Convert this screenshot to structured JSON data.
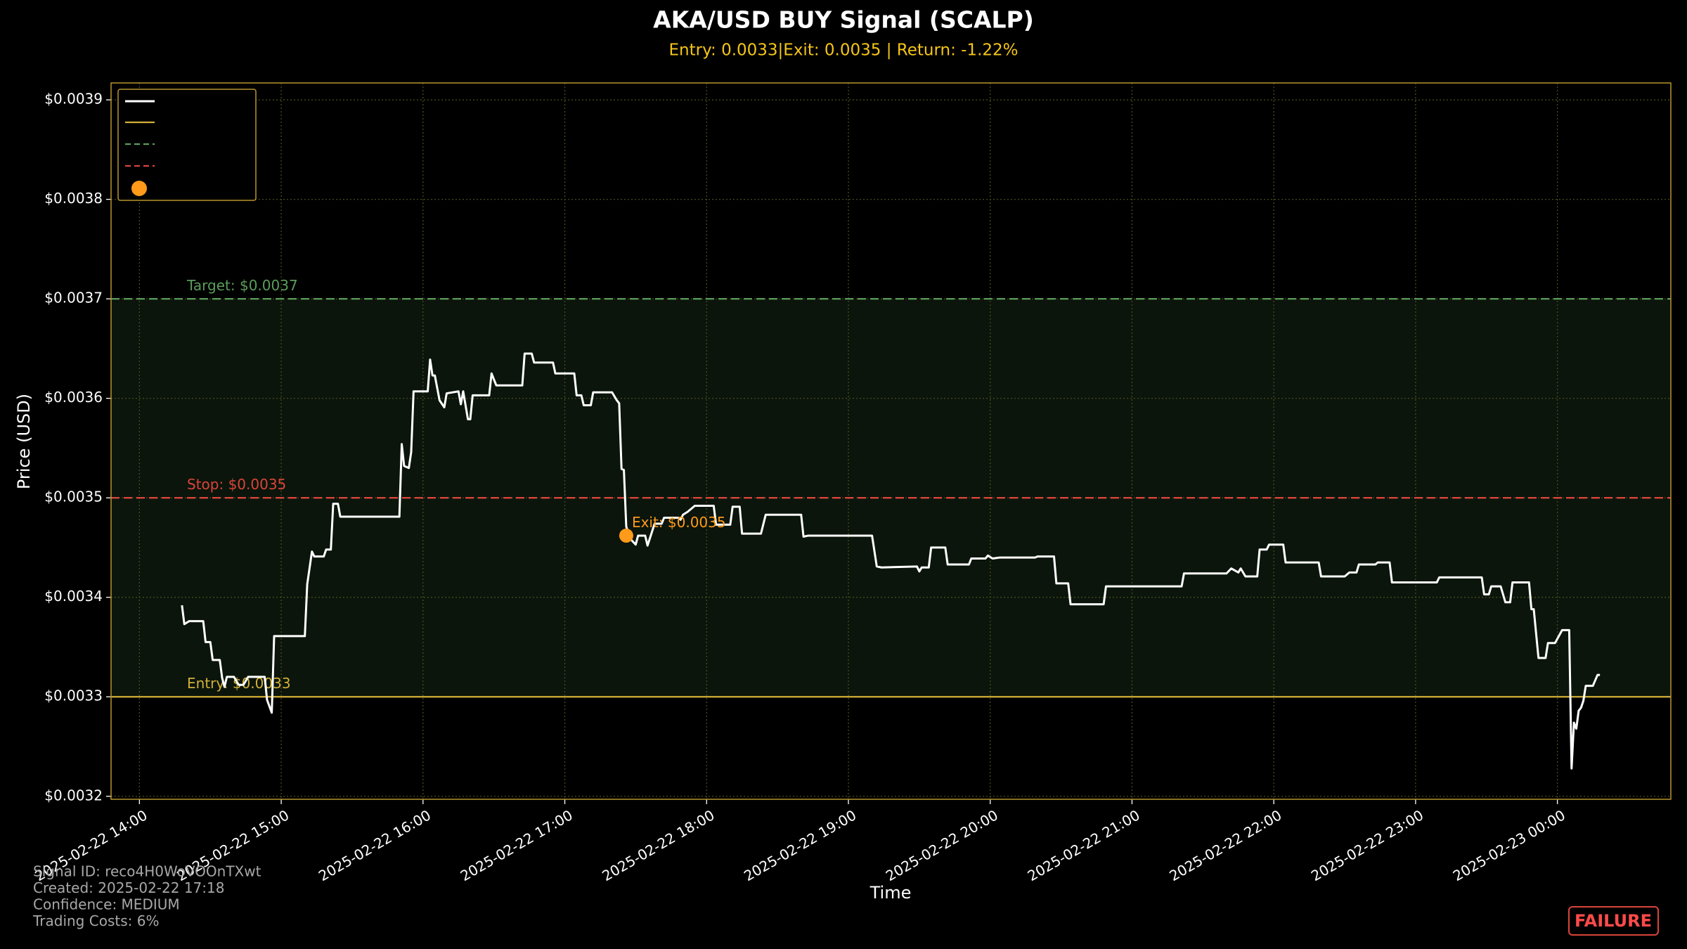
{
  "chart_data": {
    "type": "line",
    "title": "AKA/USD BUY Signal (SCALP)",
    "subtitle": "Entry: 0.0033|Exit: 0.0035 | Return: -1.22%",
    "x_label": "Time",
    "y_label": "Price (USD)",
    "line_color": "#ffffff",
    "grid": true,
    "xlim": [
      "2025-02-22 13:48",
      "2025-02-23 00:48"
    ],
    "xticks": [
      "2025-02-22 14:00",
      "2025-02-22 15:00",
      "2025-02-22 16:00",
      "2025-02-22 17:00",
      "2025-02-22 18:00",
      "2025-02-22 19:00",
      "2025-02-22 20:00",
      "2025-02-22 21:00",
      "2025-02-22 22:00",
      "2025-02-22 23:00",
      "2025-02-23 00:00"
    ],
    "ylim": [
      0.003197,
      0.003917
    ],
    "yticks": [
      {
        "value": 0.0032,
        "label": "$0.0032"
      },
      {
        "value": 0.0033,
        "label": "$0.0033"
      },
      {
        "value": 0.0034,
        "label": "$0.0034"
      },
      {
        "value": 0.0035,
        "label": "$0.0035"
      },
      {
        "value": 0.0036,
        "label": "$0.0036"
      },
      {
        "value": 0.0037,
        "label": "$0.0037"
      },
      {
        "value": 0.0038,
        "label": "$0.0038"
      },
      {
        "value": 0.0039,
        "label": "$0.0039"
      }
    ],
    "x": [
      "2025-02-22 14:18",
      "2025-02-22 14:19",
      "2025-02-22 14:21",
      "2025-02-22 14:27",
      "2025-02-22 14:28",
      "2025-02-22 14:30",
      "2025-02-22 14:31",
      "2025-02-22 14:34",
      "2025-02-22 14:35",
      "2025-02-22 14:36",
      "2025-02-22 14:37",
      "2025-02-22 14:40",
      "2025-02-22 14:42",
      "2025-02-22 14:44",
      "2025-02-22 14:46",
      "2025-02-22 14:53",
      "2025-02-22 14:54",
      "2025-02-22 14:56",
      "2025-02-22 14:57",
      "2025-02-22 15:10",
      "2025-02-22 15:11",
      "2025-02-22 15:13",
      "2025-02-22 15:14",
      "2025-02-22 15:18",
      "2025-02-22 15:19",
      "2025-02-22 15:21",
      "2025-02-22 15:22",
      "2025-02-22 15:24",
      "2025-02-22 15:25",
      "2025-02-22 15:50",
      "2025-02-22 15:51",
      "2025-02-22 15:52",
      "2025-02-22 15:54",
      "2025-02-22 15:55",
      "2025-02-22 15:56",
      "2025-02-22 16:02",
      "2025-02-22 16:03",
      "2025-02-22 16:04",
      "2025-02-22 16:05",
      "2025-02-22 16:07",
      "2025-02-22 16:09",
      "2025-02-22 16:10",
      "2025-02-22 16:15",
      "2025-02-22 16:16",
      "2025-02-22 16:17",
      "2025-02-22 16:19",
      "2025-02-22 16:20",
      "2025-02-22 16:21",
      "2025-02-22 16:28",
      "2025-02-22 16:29",
      "2025-02-22 16:31",
      "2025-02-22 16:42",
      "2025-02-22 16:43",
      "2025-02-22 16:46",
      "2025-02-22 16:47",
      "2025-02-22 16:55",
      "2025-02-22 16:56",
      "2025-02-22 17:04",
      "2025-02-22 17:05",
      "2025-02-22 17:07",
      "2025-02-22 17:08",
      "2025-02-22 17:11",
      "2025-02-22 17:12",
      "2025-02-22 17:20",
      "2025-02-22 17:22",
      "2025-02-22 17:23",
      "2025-02-22 17:24",
      "2025-02-22 17:25",
      "2025-02-22 17:26",
      "2025-02-22 17:28",
      "2025-02-22 17:30",
      "2025-02-22 17:31",
      "2025-02-22 17:34",
      "2025-02-22 17:35",
      "2025-02-22 17:38",
      "2025-02-22 17:41",
      "2025-02-22 17:42",
      "2025-02-22 17:48",
      "2025-02-22 17:49",
      "2025-02-22 17:50",
      "2025-02-22 17:52",
      "2025-02-22 17:55",
      "2025-02-22 18:03",
      "2025-02-22 18:04",
      "2025-02-22 18:10",
      "2025-02-22 18:11",
      "2025-02-22 18:14",
      "2025-02-22 18:15",
      "2025-02-22 18:23",
      "2025-02-22 18:25",
      "2025-02-22 18:40",
      "2025-02-22 18:41",
      "2025-02-22 18:43",
      "2025-02-22 19:10",
      "2025-02-22 19:12",
      "2025-02-22 19:14",
      "2025-02-22 19:29",
      "2025-02-22 19:30",
      "2025-02-22 19:31",
      "2025-02-22 19:34",
      "2025-02-22 19:35",
      "2025-02-22 19:41",
      "2025-02-22 19:42",
      "2025-02-22 19:51",
      "2025-02-22 19:52",
      "2025-02-22 19:58",
      "2025-02-22 19:59",
      "2025-02-22 20:01",
      "2025-02-22 20:04",
      "2025-02-22 20:19",
      "2025-02-22 20:20",
      "2025-02-22 20:27",
      "2025-02-22 20:28",
      "2025-02-22 20:33",
      "2025-02-22 20:34",
      "2025-02-22 20:48",
      "2025-02-22 20:49",
      "2025-02-22 21:21",
      "2025-02-22 21:22",
      "2025-02-22 21:40",
      "2025-02-22 21:42",
      "2025-02-22 21:45",
      "2025-02-22 21:46",
      "2025-02-22 21:48",
      "2025-02-22 21:53",
      "2025-02-22 21:54",
      "2025-02-22 21:57",
      "2025-02-22 21:58",
      "2025-02-22 22:04",
      "2025-02-22 22:05",
      "2025-02-22 22:19",
      "2025-02-22 22:20",
      "2025-02-22 22:30",
      "2025-02-22 22:32",
      "2025-02-22 22:35",
      "2025-02-22 22:36",
      "2025-02-22 22:43",
      "2025-02-22 22:44",
      "2025-02-22 22:49",
      "2025-02-22 22:50",
      "2025-02-22 23:09",
      "2025-02-22 23:10",
      "2025-02-22 23:28",
      "2025-02-22 23:29",
      "2025-02-22 23:31",
      "2025-02-22 23:32",
      "2025-02-22 23:36",
      "2025-02-22 23:38",
      "2025-02-22 23:40",
      "2025-02-22 23:41",
      "2025-02-22 23:48",
      "2025-02-22 23:49",
      "2025-02-22 23:50",
      "2025-02-22 23:52",
      "2025-02-22 23:55",
      "2025-02-22 23:56",
      "2025-02-22 23:59",
      "2025-02-23 00:02",
      "2025-02-23 00:05",
      "2025-02-23 00:06",
      "2025-02-23 00:07",
      "2025-02-23 00:08",
      "2025-02-23 00:09",
      "2025-02-23 00:10",
      "2025-02-23 00:11",
      "2025-02-23 00:12",
      "2025-02-23 00:15",
      "2025-02-23 00:17",
      "2025-02-23 00:18"
    ],
    "values": [
      0.003392,
      0.003373,
      0.003376,
      0.003376,
      0.003355,
      0.003355,
      0.003337,
      0.003337,
      0.003319,
      0.00331,
      0.00332,
      0.00332,
      0.003312,
      0.003312,
      0.00332,
      0.00332,
      0.003297,
      0.003284,
      0.003361,
      0.003361,
      0.003413,
      0.003446,
      0.003441,
      0.003441,
      0.003448,
      0.003448,
      0.003494,
      0.003494,
      0.003481,
      0.003481,
      0.003554,
      0.003532,
      0.00353,
      0.003546,
      0.003607,
      0.003607,
      0.003639,
      0.003623,
      0.003623,
      0.003598,
      0.003591,
      0.003605,
      0.003607,
      0.003594,
      0.003607,
      0.003579,
      0.003579,
      0.003603,
      0.003603,
      0.003625,
      0.003613,
      0.003613,
      0.003645,
      0.003645,
      0.003636,
      0.003636,
      0.003625,
      0.003625,
      0.003603,
      0.003603,
      0.003593,
      0.003593,
      0.003606,
      0.003606,
      0.003598,
      0.003595,
      0.003529,
      0.003528,
      0.003471,
      0.003458,
      0.003453,
      0.003462,
      0.003462,
      0.003452,
      0.003474,
      0.003474,
      0.00348,
      0.00348,
      0.003478,
      0.003483,
      0.003486,
      0.003492,
      0.003492,
      0.003473,
      0.003473,
      0.003491,
      0.003491,
      0.003464,
      0.003464,
      0.003483,
      0.003483,
      0.003461,
      0.003462,
      0.003462,
      0.003431,
      0.00343,
      0.003431,
      0.003426,
      0.00343,
      0.00343,
      0.00345,
      0.00345,
      0.003433,
      0.003433,
      0.003439,
      0.003439,
      0.003442,
      0.003439,
      0.00344,
      0.00344,
      0.003441,
      0.003441,
      0.003414,
      0.003414,
      0.003393,
      0.003393,
      0.003411,
      0.003411,
      0.003424,
      0.003424,
      0.003429,
      0.003425,
      0.003429,
      0.003421,
      0.003421,
      0.003448,
      0.003448,
      0.003453,
      0.003453,
      0.003435,
      0.003435,
      0.003421,
      0.003421,
      0.003425,
      0.003425,
      0.003433,
      0.003433,
      0.003435,
      0.003435,
      0.003415,
      0.003415,
      0.00342,
      0.00342,
      0.003403,
      0.003403,
      0.003411,
      0.003411,
      0.003395,
      0.003395,
      0.003415,
      0.003415,
      0.003388,
      0.003388,
      0.003339,
      0.003339,
      0.003354,
      0.003354,
      0.003367,
      0.003367,
      0.003228,
      0.003274,
      0.003268,
      0.003286,
      0.003289,
      0.003296,
      0.003311,
      0.003311,
      0.003322,
      0.003322
    ],
    "levels": [
      {
        "label": "Target: $0.0037",
        "value": 0.0037,
        "color": "#5a9e5a",
        "style": "dashed"
      },
      {
        "label": "Stop: $0.0035",
        "value": 0.0035,
        "color": "#d9443a",
        "style": "dashed"
      },
      {
        "label": "Entry: $0.0033",
        "value": 0.0033,
        "color": "#d4af37",
        "style": "solid"
      }
    ],
    "exit": {
      "label": "Exit: $0.0035",
      "x": "2025-02-22 17:26",
      "value": 0.003462,
      "color": "#ff9a1a"
    },
    "footer": [
      "Signal ID: reco4H0WoVOOnTXwt",
      "Created: 2025-02-22 17:18",
      "Confidence: MEDIUM",
      "Trading Costs: 6%"
    ],
    "status": "FAILURE"
  }
}
